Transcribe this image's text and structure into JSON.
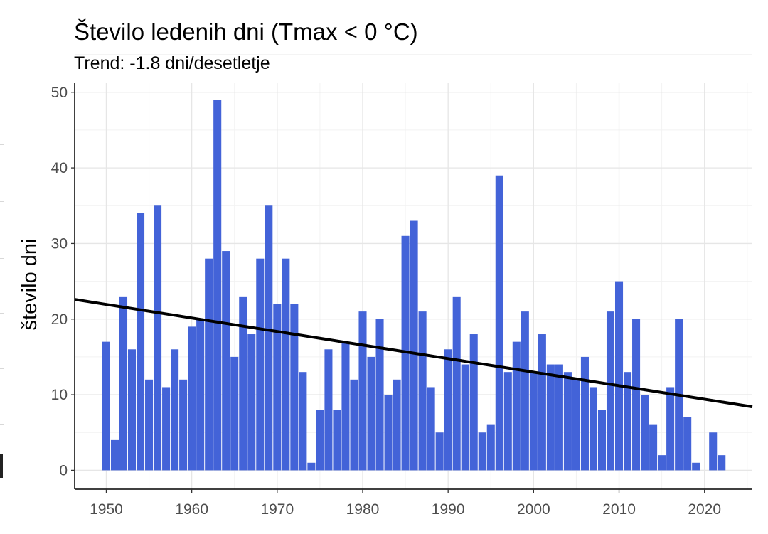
{
  "chart_data": {
    "type": "bar",
    "title": "Število ledenih dni (Tmax < 0 °C)",
    "subtitle": "Trend: -1.8 dni/desetletje",
    "xlabel": "",
    "ylabel": "število dni",
    "x": [
      1950,
      1951,
      1952,
      1953,
      1954,
      1955,
      1956,
      1957,
      1958,
      1959,
      1960,
      1961,
      1962,
      1963,
      1964,
      1965,
      1966,
      1967,
      1968,
      1969,
      1970,
      1971,
      1972,
      1973,
      1974,
      1975,
      1976,
      1977,
      1978,
      1979,
      1980,
      1981,
      1982,
      1983,
      1984,
      1985,
      1986,
      1987,
      1988,
      1989,
      1990,
      1991,
      1992,
      1993,
      1994,
      1995,
      1996,
      1997,
      1998,
      1999,
      2000,
      2001,
      2002,
      2003,
      2004,
      2005,
      2006,
      2007,
      2008,
      2009,
      2010,
      2011,
      2012,
      2013,
      2014,
      2015,
      2016,
      2017,
      2018,
      2019,
      2020,
      2021,
      2022
    ],
    "values": [
      17,
      4,
      23,
      16,
      34,
      12,
      35,
      11,
      16,
      12,
      19,
      20,
      28,
      49,
      29,
      15,
      23,
      18,
      28,
      35,
      22,
      28,
      22,
      13,
      1,
      8,
      16,
      8,
      17,
      12,
      21,
      15,
      20,
      10,
      12,
      31,
      33,
      21,
      11,
      5,
      16,
      23,
      14,
      18,
      5,
      6,
      39,
      13,
      17,
      21,
      13,
      18,
      14,
      14,
      13,
      12,
      15,
      11,
      8,
      21,
      25,
      13,
      20,
      10,
      6,
      2,
      11,
      20,
      7,
      1,
      0,
      5,
      2
    ],
    "xlim": [
      1946.3,
      2025.6
    ],
    "ylim": [
      -2.5,
      51.2
    ],
    "x_ticks": [
      "1950",
      "1960",
      "1970",
      "1980",
      "1990",
      "2000",
      "2010",
      "2020"
    ],
    "y_ticks": [
      "0",
      "10",
      "20",
      "30",
      "40",
      "50"
    ],
    "trend_line": {
      "x": [
        1946.3,
        2025.6
      ],
      "y": [
        22.6,
        8.4
      ],
      "color": "#000000"
    },
    "bar_color": "#4363D8",
    "grid": true
  }
}
